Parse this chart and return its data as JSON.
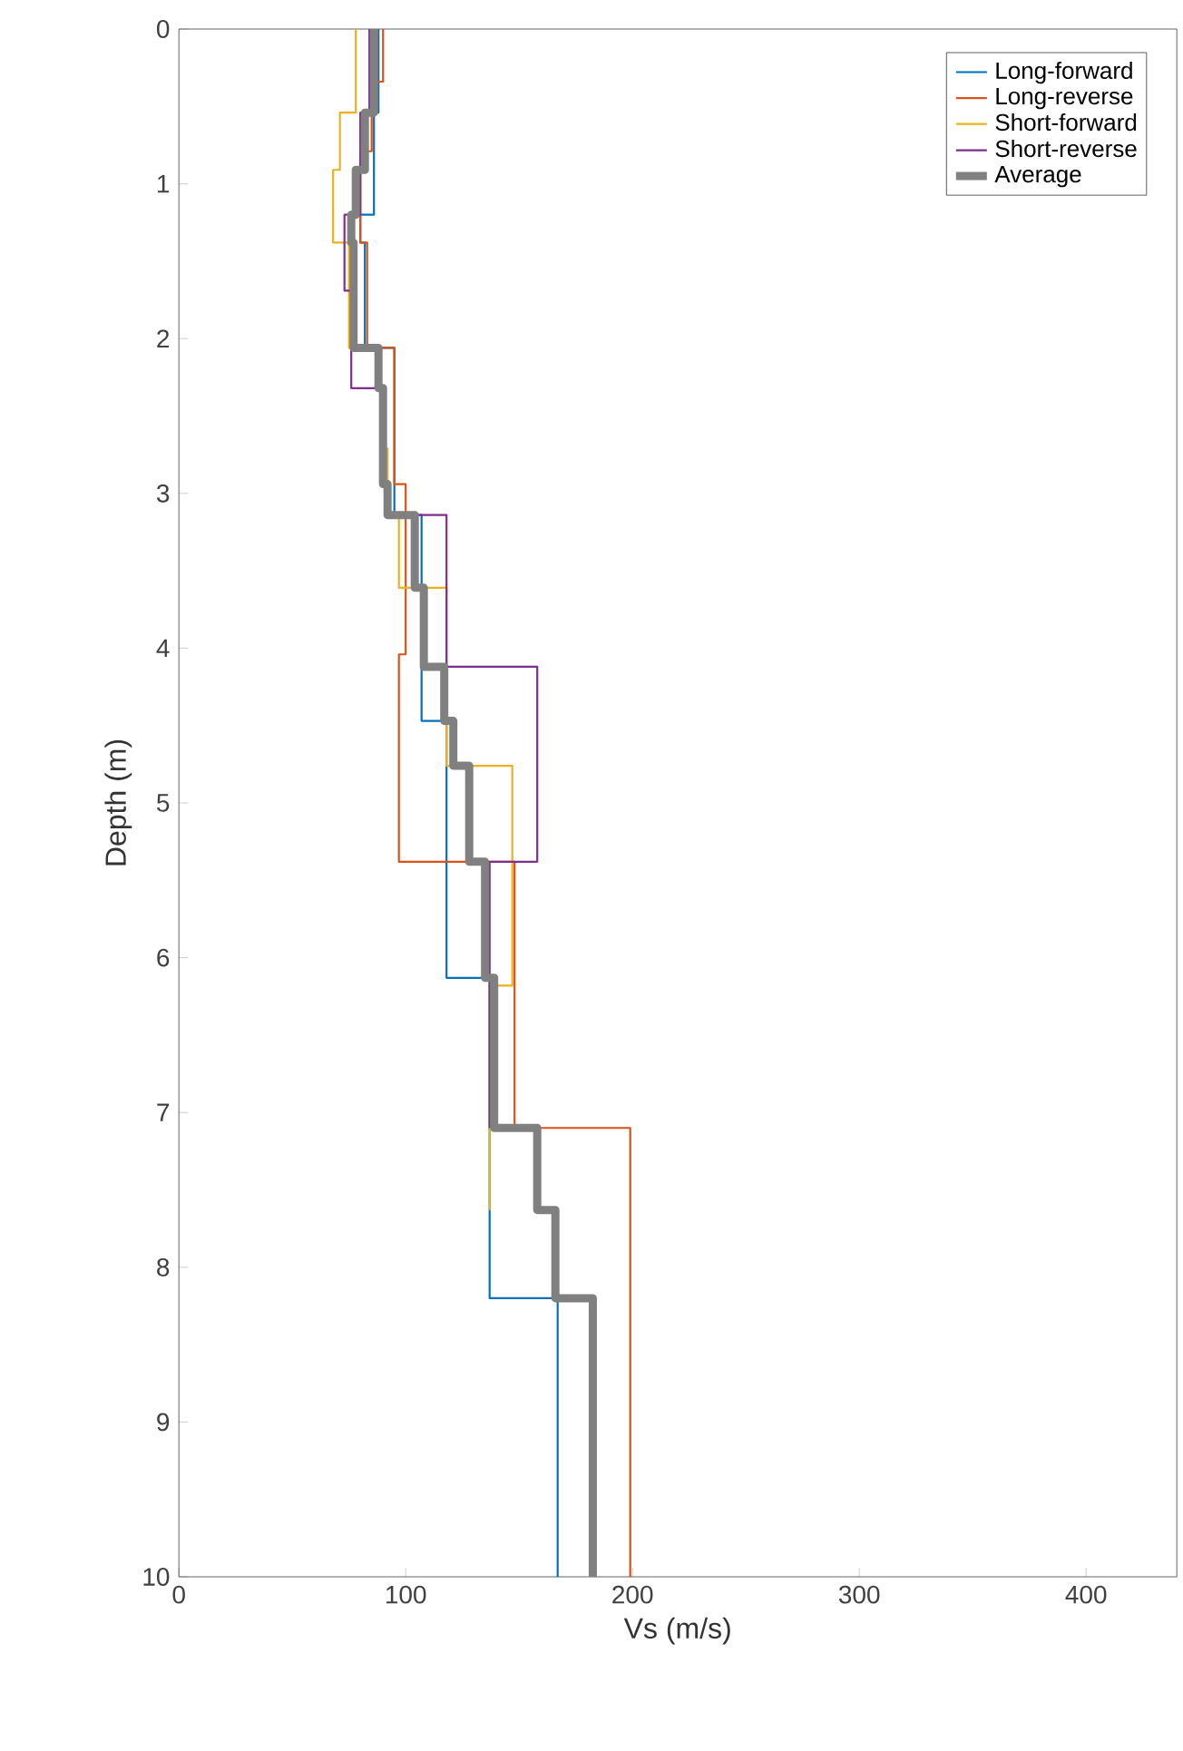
{
  "chart_data": {
    "type": "line",
    "xlabel": "Vs (m/s)",
    "ylabel": "Depth (m)",
    "xlim": [
      0,
      440
    ],
    "ylim": [
      10,
      0
    ],
    "xticks": [
      0,
      100,
      200,
      300,
      400
    ],
    "yticks": [
      0,
      1,
      2,
      3,
      4,
      5,
      6,
      7,
      8,
      9,
      10
    ],
    "grid": false,
    "legend": "top right",
    "line_style": "solid",
    "marker": "none",
    "series": [
      {
        "name": "Long-forward",
        "color": "#0072bd",
        "x": [
          88,
          88,
          86,
          86,
          80,
          80,
          82,
          82,
          95,
          95,
          107,
          107,
          118,
          118,
          137,
          137,
          167,
          167
        ],
        "values": [
          0,
          0.54,
          0.54,
          1.2,
          1.2,
          1.38,
          1.38,
          2.06,
          2.06,
          3.14,
          3.14,
          4.47,
          4.47,
          6.13,
          6.13,
          8.2,
          8.2,
          10
        ]
      },
      {
        "name": "Long-reverse",
        "color": "#d95319",
        "x": [
          90,
          90,
          85,
          85,
          80,
          80,
          83,
          83,
          95,
          95,
          100,
          100,
          97,
          97,
          148,
          148,
          199,
          199
        ],
        "values": [
          0,
          0.34,
          0.34,
          0.79,
          0.79,
          1.38,
          1.38,
          2.06,
          2.06,
          2.94,
          2.94,
          4.04,
          4.04,
          5.38,
          5.38,
          7.1,
          7.1,
          10
        ]
      },
      {
        "name": "Short-forward",
        "color": "#edb120",
        "x": [
          78,
          78,
          71,
          71,
          68,
          68,
          75,
          75,
          89,
          89,
          92,
          92,
          97,
          97,
          118,
          118,
          147,
          147,
          137,
          137
        ],
        "values": [
          0,
          0.54,
          0.54,
          0.91,
          0.91,
          1.38,
          1.38,
          2.06,
          2.06,
          2.71,
          2.71,
          3.14,
          3.14,
          3.61,
          3.61,
          4.76,
          4.76,
          6.18,
          6.18,
          7.63
        ]
      },
      {
        "name": "Short-reverse",
        "color": "#7e2f8e",
        "x": [
          84,
          84,
          80,
          80,
          73,
          73,
          76,
          76,
          89,
          89,
          91,
          91,
          118,
          118,
          158,
          158,
          137,
          137
        ],
        "values": [
          0,
          0.54,
          0.54,
          1.2,
          1.2,
          1.69,
          1.69,
          2.32,
          2.32,
          2.71,
          2.71,
          3.14,
          3.14,
          4.12,
          4.12,
          5.38,
          5.38,
          7.1
        ]
      },
      {
        "name": "Average",
        "color": "#808080",
        "x": [
          86,
          86,
          82,
          82,
          78,
          78,
          76,
          76,
          77,
          77,
          88,
          88,
          90,
          90,
          92,
          92,
          104,
          104,
          108,
          108,
          117,
          117,
          121,
          121,
          128,
          128,
          135,
          135,
          139,
          139,
          158,
          158,
          166,
          166,
          182.5,
          182.5
        ],
        "values": [
          0,
          0.54,
          0.54,
          0.91,
          0.91,
          1.2,
          1.2,
          1.38,
          1.38,
          2.06,
          2.06,
          2.32,
          2.32,
          2.94,
          2.94,
          3.14,
          3.14,
          3.61,
          3.61,
          4.12,
          4.12,
          4.47,
          4.47,
          4.76,
          4.76,
          5.38,
          5.38,
          6.13,
          6.13,
          7.1,
          7.1,
          7.63,
          7.63,
          8.2,
          8.2,
          10
        ]
      }
    ]
  }
}
